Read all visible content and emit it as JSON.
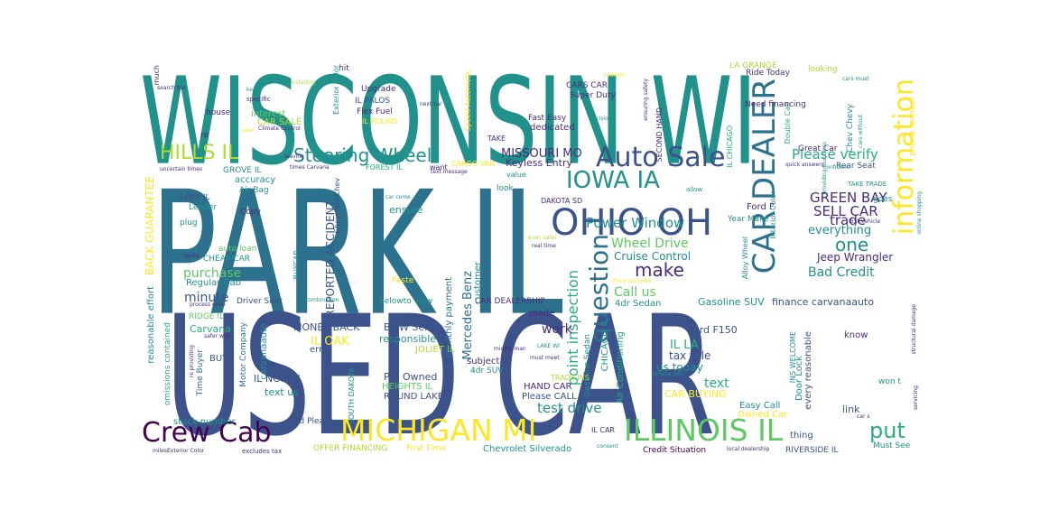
{
  "palette": {
    "c1": "#21918c",
    "c2": "#2c728e",
    "c3": "#3b528b",
    "c4": "#472d7b",
    "c5": "#440154",
    "c6": "#5ec962",
    "c7": "#addc30",
    "c8": "#fde725",
    "c9": "#28ae80"
  },
  "words": [
    {
      "t": "WISCONSIN WI",
      "c": "c1"
    },
    {
      "t": "PARK IL",
      "c": "c2"
    },
    {
      "t": "USED CAR",
      "c": "c3"
    },
    {
      "t": "OHIO OH",
      "c": "c3"
    },
    {
      "t": "MICHIGAN MI",
      "c": "c8"
    },
    {
      "t": "ILLINOIS IL",
      "c": "c6"
    },
    {
      "t": "Crew Cab",
      "c": "c5"
    },
    {
      "t": "information",
      "c": "c8"
    },
    {
      "t": "CAR DEALER",
      "c": "c2"
    },
    {
      "t": "Auto Sale",
      "c": "c3"
    },
    {
      "t": "IOWA IA",
      "c": "c1"
    },
    {
      "t": "question",
      "c": "c2"
    },
    {
      "t": "Steering Wheel",
      "c": "c1"
    },
    {
      "t": "HILLS IL",
      "c": "c7"
    },
    {
      "t": "put",
      "c": "c9"
    },
    {
      "t": "point inspection",
      "c": "c9"
    },
    {
      "t": "make",
      "c": "c4"
    },
    {
      "t": "one",
      "c": "c1"
    },
    {
      "t": "Please verify",
      "c": "c9"
    },
    {
      "t": "GREEN BAY",
      "c": "c4"
    },
    {
      "t": "SELL CAR",
      "c": "c4"
    },
    {
      "t": "trade",
      "c": "c4"
    },
    {
      "t": "Wheel Drive",
      "c": "c6"
    },
    {
      "t": "Power Window",
      "c": "c1"
    },
    {
      "t": "MISSOURI MO",
      "c": "c4"
    },
    {
      "t": "Keyless Entry",
      "c": "c4"
    },
    {
      "t": "test drive",
      "c": "c1"
    },
    {
      "t": "Mercedes Benz",
      "c": "c2"
    },
    {
      "t": "REPORTED ACCIDENT",
      "c": "c3"
    },
    {
      "t": "BACK GUARANTEE",
      "c": "c8"
    },
    {
      "t": "purchase",
      "c": "c6"
    },
    {
      "t": "minute",
      "c": "c3"
    },
    {
      "t": "Bad Credit",
      "c": "c1"
    },
    {
      "t": "everything",
      "c": "c1"
    },
    {
      "t": "Jeep Wrangler",
      "c": "c4"
    },
    {
      "t": "Call us",
      "c": "c6"
    },
    {
      "t": "Cruise Control",
      "c": "c1"
    },
    {
      "t": "Gasoline SUV",
      "c": "c1"
    },
    {
      "t": "finance carvanaauto",
      "c": "c3"
    },
    {
      "t": "work",
      "c": "c4"
    },
    {
      "t": "IL LA",
      "c": "c9"
    },
    {
      "t": "text",
      "c": "c9"
    },
    {
      "t": "us today",
      "c": "c1"
    },
    {
      "t": "tax title",
      "c": "c3"
    },
    {
      "t": "CAR BUYING",
      "c": "c8"
    },
    {
      "t": "IL OAK",
      "c": "c8"
    },
    {
      "t": "MONEY BACK",
      "c": "c3"
    },
    {
      "t": "BMW Series",
      "c": "c3"
    },
    {
      "t": "responsible",
      "c": "c1"
    },
    {
      "t": "JOLIET IL",
      "c": "c7"
    },
    {
      "t": "Pre Owned",
      "c": "c3"
    },
    {
      "t": "HEIGHTS IL",
      "c": "c6"
    },
    {
      "t": "ROUND LAKE",
      "c": "c3"
    },
    {
      "t": "Please CALL",
      "c": "c3"
    },
    {
      "t": "HAND CAR",
      "c": "c4"
    },
    {
      "t": "subject",
      "c": "c4"
    },
    {
      "t": "4dr SUV",
      "c": "c1"
    },
    {
      "t": "IL NORTH",
      "c": "c3"
    },
    {
      "t": "text us",
      "c": "c1"
    },
    {
      "t": "carvanaauto",
      "c": "c1"
    },
    {
      "t": "Carvana",
      "c": "c9"
    },
    {
      "t": "RIDGE IL",
      "c": "c6"
    },
    {
      "t": "BUY",
      "c": "c3"
    },
    {
      "t": "Time Buyer",
      "c": "c2"
    },
    {
      "t": "reasonable effort",
      "c": "c1"
    },
    {
      "t": "stock number",
      "c": "c1"
    },
    {
      "t": "ad Please",
      "c": "c3"
    },
    {
      "t": "OFFER FINANCING",
      "c": "c7"
    },
    {
      "t": "First Time",
      "c": "c8"
    },
    {
      "t": "Chevrolet Silverado",
      "c": "c1"
    },
    {
      "t": "Credit Situation",
      "c": "c5"
    },
    {
      "t": "RIVERSIDE IL",
      "c": "c3"
    },
    {
      "t": "Must See",
      "c": "c1"
    },
    {
      "t": "Ford F150",
      "c": "c3"
    },
    {
      "t": "Easy Call",
      "c": "c1"
    },
    {
      "t": "Owned Car",
      "c": "c8"
    },
    {
      "t": "link",
      "c": "c3"
    },
    {
      "t": "thing",
      "c": "c3"
    },
    {
      "t": "know",
      "c": "c4"
    },
    {
      "t": "Door Lock",
      "c": "c1"
    },
    {
      "t": "every reasonable",
      "c": "c3"
    },
    {
      "t": "won t",
      "c": "c1"
    },
    {
      "t": "Air Conditioning",
      "c": "c9"
    },
    {
      "t": "CHICAGO IL",
      "c": "c1"
    },
    {
      "t": "Gasoline Sedan",
      "c": "c1"
    },
    {
      "t": "4dr Sedan",
      "c": "c1"
    },
    {
      "t": "made",
      "c": "c4"
    },
    {
      "t": "CAR DEALERSHIP",
      "c": "c4"
    },
    {
      "t": "belowto view",
      "c": "c1"
    },
    {
      "t": "customer",
      "c": "c1"
    },
    {
      "t": "monthly payment",
      "c": "c2"
    },
    {
      "t": "ensure",
      "c": "c1"
    },
    {
      "t": "look",
      "c": "c1"
    },
    {
      "t": "DAKOTA SD",
      "c": "c4"
    },
    {
      "t": "value",
      "c": "c1"
    },
    {
      "t": "Ford F",
      "c": "c4"
    },
    {
      "t": "Year Make",
      "c": "c1"
    },
    {
      "t": "Interior Color",
      "c": "c1"
    },
    {
      "t": "Alloy Wheel",
      "c": "c1"
    },
    {
      "t": "Rear Seat",
      "c": "c3"
    },
    {
      "t": "goes",
      "c": "c1"
    },
    {
      "t": "Great Car",
      "c": "c4"
    },
    {
      "t": "Chev Chevy",
      "c": "c1"
    },
    {
      "t": "phone number",
      "c": "c8"
    },
    {
      "t": "Double Cab",
      "c": "c9"
    },
    {
      "t": "Need financing",
      "c": "c4"
    },
    {
      "t": "Ride Today",
      "c": "c4"
    },
    {
      "t": "LA GRANGE",
      "c": "c7"
    },
    {
      "t": "IL CHICAGO",
      "c": "c9"
    },
    {
      "t": "looking",
      "c": "c7"
    },
    {
      "t": "SECOND HAND",
      "c": "c4"
    },
    {
      "t": "Super Duty",
      "c": "c4"
    },
    {
      "t": "CARS CAR",
      "c": "c4"
    },
    {
      "t": "dedicated",
      "c": "c4"
    },
    {
      "t": "Fast Easy",
      "c": "c4"
    },
    {
      "t": "TAKE",
      "c": "c4"
    },
    {
      "t": "Speed Automatic",
      "c": "c8"
    },
    {
      "t": "CARGO VAN",
      "c": "c8"
    },
    {
      "t": "want",
      "c": "c4"
    },
    {
      "t": "FOREST IL",
      "c": "c9"
    },
    {
      "t": "Upgrade",
      "c": "c4"
    },
    {
      "t": "IL PALOS",
      "c": "c3"
    },
    {
      "t": "Flex Fuel",
      "c": "c4"
    },
    {
      "t": "IL ROUND",
      "c": "c8"
    },
    {
      "t": "hit",
      "c": "c4"
    },
    {
      "t": "Exterior Color",
      "c": "c1"
    },
    {
      "t": "interest",
      "c": "c6"
    },
    {
      "t": "CAR SALE",
      "c": "c7"
    },
    {
      "t": "house",
      "c": "c4"
    },
    {
      "t": "re",
      "c": "c4"
    },
    {
      "t": "GROVE IL",
      "c": "c1"
    },
    {
      "t": "accuracy",
      "c": "c1"
    },
    {
      "t": "Air Bag",
      "c": "c1"
    },
    {
      "t": "LAKE IL",
      "c": "c3"
    },
    {
      "t": "Lender",
      "c": "c1"
    },
    {
      "t": "plug",
      "c": "c1"
    },
    {
      "t": "Copy",
      "c": "c4"
    },
    {
      "t": "auto loan",
      "c": "c6"
    },
    {
      "t": "CHEAP CAR",
      "c": "c1"
    },
    {
      "t": "Regular Cab",
      "c": "c1"
    },
    {
      "t": "Driver Seat",
      "c": "c3"
    },
    {
      "t": "Chevrolet Chev",
      "c": "c3"
    },
    {
      "t": "BUYCAR",
      "c": "c1"
    },
    {
      "t": "Paste",
      "c": "c8"
    },
    {
      "t": "error",
      "c": "c3"
    },
    {
      "t": "Motor Company",
      "c": "c2"
    },
    {
      "t": "much",
      "c": "c4"
    },
    {
      "t": "search bar",
      "c": "c4"
    },
    {
      "t": "keep",
      "c": "c1"
    },
    {
      "t": "specific",
      "c": "c4"
    },
    {
      "t": "including",
      "c": "c7"
    },
    {
      "t": "next car",
      "c": "c4"
    },
    {
      "t": "Climate Control",
      "c": "c4"
    },
    {
      "t": "leaving",
      "c": "c4"
    },
    {
      "t": "times Carvana",
      "c": "c4"
    },
    {
      "t": "uncertain times",
      "c": "c4"
    },
    {
      "t": "save",
      "c": "c8"
    },
    {
      "t": "car come",
      "c": "c1"
    },
    {
      "t": "even safer",
      "c": "c7"
    },
    {
      "t": "real time",
      "c": "c4"
    },
    {
      "t": "agree",
      "c": "c4"
    },
    {
      "t": "omissions contained",
      "c": "c9"
    },
    {
      "t": "process even",
      "c": "c4"
    },
    {
      "t": "combination",
      "c": "c1"
    },
    {
      "t": "Price excludes",
      "c": "c8"
    },
    {
      "t": "safer way",
      "c": "c4"
    },
    {
      "t": "re providing",
      "c": "c4"
    },
    {
      "t": "SOUTH DAKOTA",
      "c": "c1"
    },
    {
      "t": "TRADE INS",
      "c": "c7"
    },
    {
      "t": "middle man",
      "c": "c4"
    },
    {
      "t": "must meet",
      "c": "c4"
    },
    {
      "t": "LAKE WI",
      "c": "c1"
    },
    {
      "t": "Vehicle Info",
      "c": "c1"
    },
    {
      "t": "INS WELCOME",
      "c": "c1"
    },
    {
      "t": "IL CAR",
      "c": "c4"
    },
    {
      "t": "consent",
      "c": "c1"
    },
    {
      "t": "milesExterior Color",
      "c": "c4"
    },
    {
      "t": "excludes tax",
      "c": "c4"
    },
    {
      "t": "local dealership",
      "c": "c4"
    },
    {
      "t": "car s",
      "c": "c4"
    },
    {
      "t": "servicing",
      "c": "c4"
    },
    {
      "t": "structural damage",
      "c": "c4"
    },
    {
      "t": "quick answers",
      "c": "c4"
    },
    {
      "t": "first Vehicle",
      "c": "c4"
    },
    {
      "t": "online shopping",
      "c": "c1"
    },
    {
      "t": "TAKE TRADE",
      "c": "c1"
    },
    {
      "t": "allow",
      "c": "c1"
    },
    {
      "t": "ensuring safety",
      "c": "c4"
    },
    {
      "t": "decision",
      "c": "c1"
    },
    {
      "t": "addition",
      "c": "c8"
    },
    {
      "t": "cars must",
      "c": "c1"
    },
    {
      "t": "confident",
      "c": "c1"
    },
    {
      "t": "cars without",
      "c": "c1"
    },
    {
      "t": "text message",
      "c": "c4"
    },
    {
      "t": "providing touchless",
      "c": "c1"
    }
  ]
}
